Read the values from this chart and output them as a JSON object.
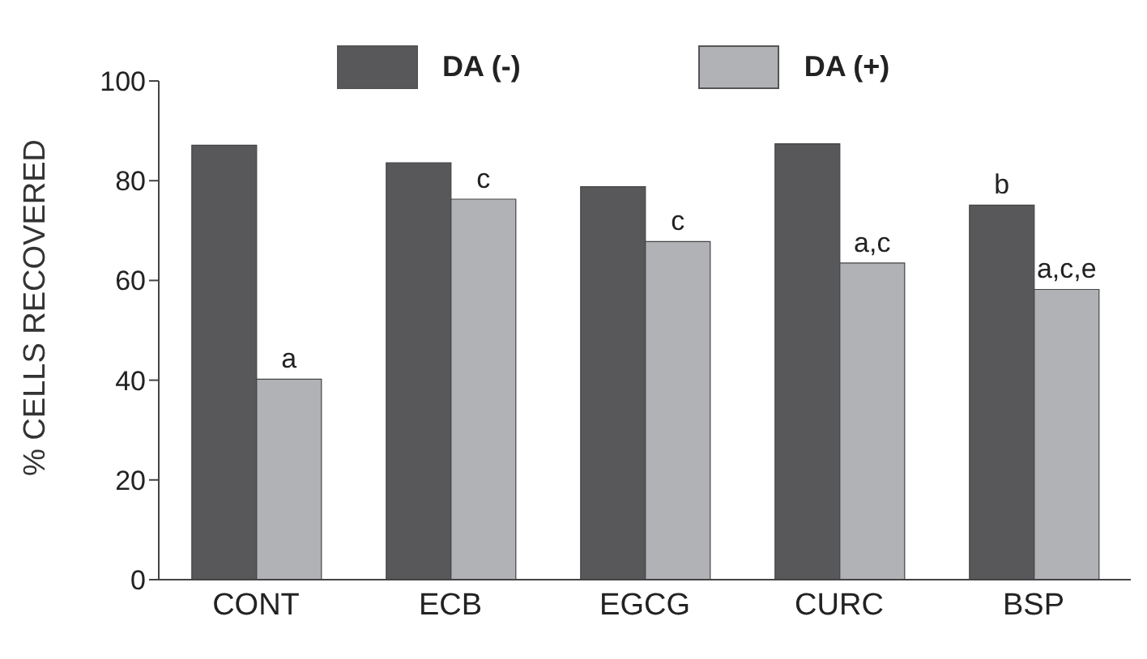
{
  "chart_data": {
    "type": "bar",
    "ylabel": "% CELLS RECOVERED",
    "categories": [
      "CONT",
      "ECB",
      "EGCG",
      "CURC",
      "BSP"
    ],
    "series": [
      {
        "name": "DA (-)",
        "color": "#58585a",
        "values": [
          87.1,
          83.6,
          78.8,
          87.4,
          75.1
        ],
        "value_labels": [
          null,
          null,
          null,
          null,
          "b"
        ]
      },
      {
        "name": "DA (+)",
        "color": "#b1b2b6",
        "values": [
          40.2,
          76.3,
          67.8,
          63.5,
          58.2
        ],
        "value_labels": [
          "a",
          "c",
          "c",
          "a,c",
          "a,c,e"
        ]
      }
    ],
    "ylim": [
      0,
      100
    ],
    "yticks": [
      0,
      20,
      40,
      60,
      80,
      100
    ],
    "grid": false,
    "legend": "top"
  }
}
